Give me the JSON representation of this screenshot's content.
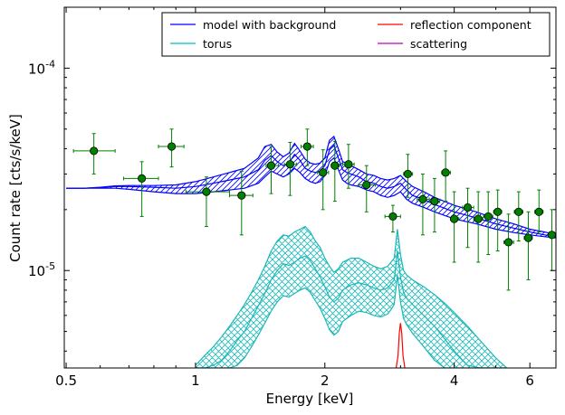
{
  "chart_data": {
    "type": "line",
    "title": "",
    "xlabel": "Energy [keV]",
    "ylabel": "Count rate [cts/s/keV]",
    "x_scale": "log",
    "y_scale": "log",
    "xlim": [
      0.495,
      6.9
    ],
    "ylim": [
      3.3e-06,
      0.0002
    ],
    "x_ticks": [
      {
        "value": 0.5,
        "label": "0.5"
      },
      {
        "value": 1,
        "label": "1"
      },
      {
        "value": 2,
        "label": "2"
      },
      {
        "value": 4,
        "label": "4"
      },
      {
        "value": 6,
        "label": "6"
      }
    ],
    "y_ticks": [
      {
        "value": 1e-05,
        "base": "10",
        "exp": "-5"
      },
      {
        "value": 0.0001,
        "base": "10",
        "exp": "-4"
      }
    ],
    "legend": {
      "placement": "top-right",
      "columns": 2,
      "entries": [
        {
          "label": "model with background",
          "color": "#0000ff"
        },
        {
          "label": "torus",
          "color": "#00bfbf"
        },
        {
          "label": "reflection component",
          "color": "#ff0000"
        },
        {
          "label": "scattering",
          "color": "#bf00bf"
        }
      ]
    },
    "colors": {
      "model": "#0000ff",
      "torus": "#1cb8b8",
      "reflection": "#ff0000",
      "data": "#007f00"
    },
    "model_with_background": {
      "x": [
        0.5,
        0.55,
        0.6,
        0.65,
        0.7,
        0.8,
        0.9,
        1.0,
        1.1,
        1.2,
        1.3,
        1.4,
        1.45,
        1.5,
        1.55,
        1.6,
        1.65,
        1.7,
        1.75,
        1.8,
        1.85,
        1.9,
        1.95,
        2.0,
        2.05,
        2.1,
        2.15,
        2.2,
        2.25,
        2.3,
        2.4,
        2.5,
        2.6,
        2.7,
        2.8,
        2.9,
        3.0,
        3.1,
        3.2,
        3.4,
        3.6,
        4.0,
        4.5,
        5.0,
        5.5,
        6.0,
        6.5,
        6.9
      ],
      "upper": [
        2.55e-05,
        2.55e-05,
        2.58e-05,
        2.62e-05,
        2.63e-05,
        2.63e-05,
        2.65e-05,
        2.75e-05,
        2.9e-05,
        3.05e-05,
        3.2e-05,
        3.6e-05,
        4.1e-05,
        4.2e-05,
        3.85e-05,
        3.65e-05,
        3.8e-05,
        4.25e-05,
        3.9e-05,
        3.55e-05,
        3.4e-05,
        3.35e-05,
        3.4e-05,
        3.6e-05,
        4.4e-05,
        4.6e-05,
        4e-05,
        3.45e-05,
        3.4e-05,
        3.3e-05,
        3.15e-05,
        3e-05,
        2.95e-05,
        2.85e-05,
        2.8e-05,
        2.85e-05,
        2.95e-05,
        2.75e-05,
        2.6e-05,
        2.45e-05,
        2.3e-05,
        2.1e-05,
        1.95e-05,
        1.8e-05,
        1.7e-05,
        1.6e-05,
        1.55e-05,
        1.5e-05
      ],
      "mid": [
        2.55e-05,
        2.55e-05,
        2.57e-05,
        2.6e-05,
        2.6e-05,
        2.58e-05,
        2.55e-05,
        2.6e-05,
        2.7e-05,
        2.8e-05,
        2.9e-05,
        3.15e-05,
        3.5e-05,
        3.7e-05,
        3.45e-05,
        3.3e-05,
        3.4e-05,
        3.75e-05,
        3.5e-05,
        3.2e-05,
        3.1e-05,
        3.05e-05,
        3.1e-05,
        3.3e-05,
        3.95e-05,
        4.15e-05,
        3.6e-05,
        3.15e-05,
        3.05e-05,
        3e-05,
        2.9e-05,
        2.75e-05,
        2.7e-05,
        2.6e-05,
        2.55e-05,
        2.6e-05,
        2.7e-05,
        2.5e-05,
        2.35e-05,
        2.25e-05,
        2.12e-05,
        1.95e-05,
        1.82e-05,
        1.7e-05,
        1.62e-05,
        1.55e-05,
        1.5e-05,
        1.47e-05
      ],
      "lower": [
        2.55e-05,
        2.55e-05,
        2.55e-05,
        2.55e-05,
        2.52e-05,
        2.45e-05,
        2.4e-05,
        2.4e-05,
        2.45e-05,
        2.5e-05,
        2.55e-05,
        2.7e-05,
        2.9e-05,
        3.1e-05,
        3e-05,
        2.9e-05,
        3e-05,
        3.2e-05,
        3.05e-05,
        2.85e-05,
        2.75e-05,
        2.7e-05,
        2.75e-05,
        2.95e-05,
        3.45e-05,
        3.6e-05,
        3.15e-05,
        2.8e-05,
        2.7e-05,
        2.65e-05,
        2.6e-05,
        2.5e-05,
        2.45e-05,
        2.35e-05,
        2.3e-05,
        2.35e-05,
        2.45e-05,
        2.25e-05,
        2.15e-05,
        2.05e-05,
        1.95e-05,
        1.8e-05,
        1.7e-05,
        1.6e-05,
        1.54e-05,
        1.5e-05,
        1.47e-05,
        1.45e-05
      ]
    },
    "torus": {
      "x": [
        1.0,
        1.05,
        1.1,
        1.15,
        1.2,
        1.25,
        1.3,
        1.35,
        1.4,
        1.45,
        1.5,
        1.55,
        1.6,
        1.65,
        1.7,
        1.75,
        1.8,
        1.85,
        1.9,
        1.95,
        2.0,
        2.05,
        2.1,
        2.15,
        2.2,
        2.3,
        2.4,
        2.5,
        2.6,
        2.7,
        2.8,
        2.85,
        2.9,
        2.95,
        3.0,
        3.05,
        3.1,
        3.2,
        3.4,
        3.6,
        3.8,
        4.0,
        4.3,
        4.6,
        5.0,
        5.3
      ],
      "upper": [
        3.4e-06,
        3.8e-06,
        4.2e-06,
        4.7e-06,
        5.3e-06,
        6e-06,
        6.8e-06,
        7.8e-06,
        9e-06,
        1.05e-05,
        1.25e-05,
        1.4e-05,
        1.5e-05,
        1.48e-05,
        1.55e-05,
        1.6e-05,
        1.65e-05,
        1.55e-05,
        1.4e-05,
        1.3e-05,
        1.15e-05,
        1.05e-05,
        9.8e-06,
        1.02e-05,
        1.1e-05,
        1.15e-05,
        1.15e-05,
        1.1e-05,
        1.05e-05,
        1.02e-05,
        1.05e-05,
        1.1e-05,
        1.15e-05,
        1.6e-05,
        1.2e-05,
        1e-05,
        9.5e-06,
        9e-06,
        8.3e-06,
        7.6e-06,
        6.9e-06,
        6.2e-06,
        5.3e-06,
        4.5e-06,
        3.7e-06,
        3.3e-06
      ],
      "mid": [
        3.3e-06,
        3.3e-06,
        3.4e-06,
        3.6e-06,
        4e-06,
        4.5e-06,
        5e-06,
        5.8e-06,
        6.7e-06,
        7.7e-06,
        9e-06,
        1e-05,
        1.08e-05,
        1.06e-05,
        1.1e-05,
        1.15e-05,
        1.18e-05,
        1.12e-05,
        1.02e-05,
        9.3e-06,
        8.3e-06,
        7.4e-06,
        7e-06,
        7.3e-06,
        8e-06,
        8.5e-06,
        8.7e-06,
        8.5e-06,
        8.2e-06,
        8e-06,
        8.2e-06,
        8.6e-06,
        9e-06,
        1.25e-05,
        9.3e-06,
        7.8e-06,
        7.3e-06,
        6.8e-06,
        6e-06,
        5.3e-06,
        4.6e-06,
        4e-06,
        3.4e-06,
        3.3e-06,
        3.3e-06,
        3.3e-06
      ],
      "lower": [
        3.3e-06,
        3.3e-06,
        3.3e-06,
        3.3e-06,
        3.3e-06,
        3.4e-06,
        3.7e-06,
        4.2e-06,
        4.8e-06,
        5.5e-06,
        6.3e-06,
        7e-06,
        7.5e-06,
        7.4e-06,
        7.7e-06,
        8e-06,
        8.2e-06,
        7.8e-06,
        7.1e-06,
        6.5e-06,
        5.8e-06,
        5.1e-06,
        4.8e-06,
        5e-06,
        5.6e-06,
        6e-06,
        6.3e-06,
        6.2e-06,
        6e-06,
        5.9e-06,
        6.1e-06,
        6.4e-06,
        6.8e-06,
        9.5e-06,
        7e-06,
        5.8e-06,
        5.4e-06,
        4.9e-06,
        4.2e-06,
        3.6e-06,
        3.3e-06,
        3.3e-06,
        3.3e-06,
        3.3e-06,
        3.3e-06,
        3.3e-06
      ]
    },
    "reflection": {
      "x": [
        2.93,
        2.96,
        2.98,
        3.0,
        3.02,
        3.04,
        3.07
      ],
      "y": [
        3.3e-06,
        3.8e-06,
        4.9e-06,
        5.5e-06,
        4.9e-06,
        3.8e-06,
        3.3e-06
      ]
    },
    "data_points": [
      {
        "x": 0.58,
        "y": 3.9e-05,
        "xerr": [
          0.52,
          0.65
        ],
        "yerr": [
          3e-05,
          4.75e-05
        ]
      },
      {
        "x": 0.75,
        "y": 2.85e-05,
        "xerr": [
          0.68,
          0.82
        ],
        "yerr": [
          1.85e-05,
          3.45e-05
        ]
      },
      {
        "x": 0.88,
        "y": 4.1e-05,
        "xerr": [
          0.82,
          0.94
        ],
        "yerr": [
          3.25e-05,
          5e-05
        ]
      },
      {
        "x": 1.06,
        "y": 2.45e-05,
        "xerr": [
          0.95,
          1.2
        ],
        "yerr": [
          1.65e-05,
          2.9e-05
        ]
      },
      {
        "x": 1.28,
        "y": 2.35e-05,
        "xerr": [
          1.2,
          1.36
        ],
        "yerr": [
          1.5e-05,
          3.1e-05
        ]
      },
      {
        "x": 1.5,
        "y": 3.3e-05,
        "xerr": [
          1.46,
          1.56
        ],
        "yerr": [
          2.4e-05,
          4.1e-05
        ]
      },
      {
        "x": 1.66,
        "y": 3.35e-05,
        "xerr": [
          1.61,
          1.72
        ],
        "yerr": [
          2.35e-05,
          4.3e-05
        ]
      },
      {
        "x": 1.82,
        "y": 4.1e-05,
        "xerr": [
          1.76,
          1.88
        ],
        "yerr": [
          3.3e-05,
          5e-05
        ]
      },
      {
        "x": 1.98,
        "y": 3.05e-05,
        "xerr": [
          1.92,
          2.04
        ],
        "yerr": [
          2e-05,
          3.95e-05
        ]
      },
      {
        "x": 2.11,
        "y": 3.3e-05,
        "xerr": [
          2.07,
          2.16
        ],
        "yerr": [
          2.2e-05,
          4.35e-05
        ]
      },
      {
        "x": 2.27,
        "y": 3.35e-05,
        "xerr": [
          2.2,
          2.34
        ],
        "yerr": [
          2.55e-05,
          4.2e-05
        ]
      },
      {
        "x": 2.5,
        "y": 2.65e-05,
        "xerr": [
          2.4,
          2.62
        ],
        "yerr": [
          1.95e-05,
          3.3e-05
        ]
      },
      {
        "x": 2.88,
        "y": 1.85e-05,
        "xerr": [
          2.76,
          3.0
        ],
        "yerr": [
          1.55e-05,
          2.1e-05
        ]
      },
      {
        "x": 3.12,
        "y": 3e-05,
        "xerr": [
          3.05,
          3.2
        ],
        "yerr": [
          2.3e-05,
          3.75e-05
        ]
      },
      {
        "x": 3.38,
        "y": 2.25e-05,
        "xerr": [
          3.28,
          3.5
        ],
        "yerr": [
          1.5e-05,
          3e-05
        ]
      },
      {
        "x": 3.6,
        "y": 2.2e-05,
        "xerr": [
          3.5,
          3.7
        ],
        "yerr": [
          1.55e-05,
          2.85e-05
        ]
      },
      {
        "x": 3.82,
        "y": 3.05e-05,
        "xerr": [
          3.74,
          3.92
        ],
        "yerr": [
          2.2e-05,
          3.9e-05
        ]
      },
      {
        "x": 4.0,
        "y": 1.8e-05,
        "xerr": [
          3.92,
          4.1
        ],
        "yerr": [
          1.1e-05,
          2.45e-05
        ]
      },
      {
        "x": 4.3,
        "y": 2.05e-05,
        "xerr": [
          4.18,
          4.44
        ],
        "yerr": [
          1.3e-05,
          2.55e-05
        ]
      },
      {
        "x": 4.55,
        "y": 1.8e-05,
        "xerr": [
          4.44,
          4.66
        ],
        "yerr": [
          1.1e-05,
          2.45e-05
        ]
      },
      {
        "x": 4.8,
        "y": 1.85e-05,
        "xerr": [
          4.68,
          4.92
        ],
        "yerr": [
          1.2e-05,
          2.45e-05
        ]
      },
      {
        "x": 5.05,
        "y": 1.95e-05,
        "xerr": [
          4.94,
          5.16
        ],
        "yerr": [
          1.25e-05,
          2.5e-05
        ]
      },
      {
        "x": 5.35,
        "y": 1.38e-05,
        "xerr": [
          5.22,
          5.5
        ],
        "yerr": [
          8e-06,
          1.9e-05
        ]
      },
      {
        "x": 5.65,
        "y": 1.95e-05,
        "xerr": [
          5.52,
          5.78
        ],
        "yerr": [
          1.4e-05,
          2.45e-05
        ]
      },
      {
        "x": 5.95,
        "y": 1.45e-05,
        "xerr": [
          5.82,
          6.08
        ],
        "yerr": [
          9e-06,
          1.95e-05
        ]
      },
      {
        "x": 6.3,
        "y": 1.95e-05,
        "xerr": [
          6.16,
          6.44
        ],
        "yerr": [
          1.55e-05,
          2.5e-05
        ]
      },
      {
        "x": 6.75,
        "y": 1.5e-05,
        "xerr": [
          6.62,
          6.88
        ],
        "yerr": [
          1e-05,
          2e-05
        ]
      }
    ]
  }
}
